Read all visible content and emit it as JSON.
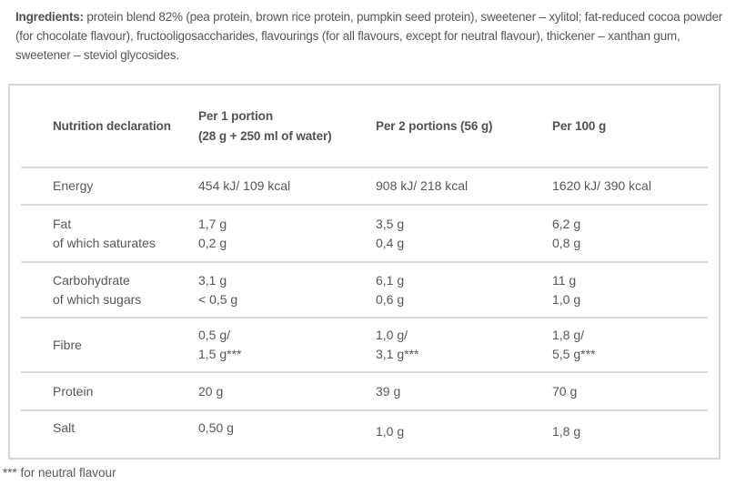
{
  "colors": {
    "text": "#56575b",
    "bold_text": "#4f5054",
    "table_border": "#d6d6d6",
    "row_divider": "#dadada"
  },
  "ingredients": {
    "label": "Ingredients:",
    "text": " protein blend 82% (pea protein, brown rice protein, pumpkin seed protein), sweetener – xylitol; fat-reduced cocoa powder (for chocolate flavour), fructooligosaccharides, flavourings (for all flavours, except for neutral flavour), thickener – xanthan gum, sweetener – steviol glycosides."
  },
  "table": {
    "headers": [
      {
        "line1": "Nutrition declaration",
        "line2": ""
      },
      {
        "line1": "Per 1 portion",
        "line2": "(28 g + 250 ml of water)"
      },
      {
        "line1": "Per 2 portions (56 g)",
        "line2": ""
      },
      {
        "line1": "Per 100 g",
        "line2": ""
      }
    ],
    "rows": [
      {
        "cells": [
          [
            "Energy"
          ],
          [
            "454 kJ/ 109 kcal"
          ],
          [
            "908 kJ/ 218 kcal"
          ],
          [
            "1620 kJ/ 390 kcal"
          ]
        ]
      },
      {
        "cells": [
          [
            "Fat",
            "of which saturates"
          ],
          [
            "1,7 g",
            "0,2 g"
          ],
          [
            "3,5 g",
            "0,4 g"
          ],
          [
            "6,2 g",
            "0,8 g"
          ]
        ]
      },
      {
        "cells": [
          [
            "Carbohydrate",
            "of which sugars"
          ],
          [
            "3,1 g",
            "< 0,5 g"
          ],
          [
            "6,1 g",
            "0,6 g"
          ],
          [
            "11 g",
            "1,0 g"
          ]
        ]
      },
      {
        "cells": [
          [
            "Fibre"
          ],
          [
            "0,5 g/",
            "1,5 g***"
          ],
          [
            "1,0 g/",
            "3,1 g***"
          ],
          [
            "1,8 g/",
            "5,5 g***"
          ]
        ]
      },
      {
        "cells": [
          [
            "Protein"
          ],
          [
            "20 g"
          ],
          [
            "39 g"
          ],
          [
            "70 g"
          ]
        ]
      },
      {
        "cells": [
          [
            "Salt"
          ],
          [
            "0,50 g"
          ],
          [
            "1,0 g"
          ],
          [
            "1,8 g"
          ]
        ]
      }
    ]
  },
  "footnote": "*** for neutral flavour"
}
